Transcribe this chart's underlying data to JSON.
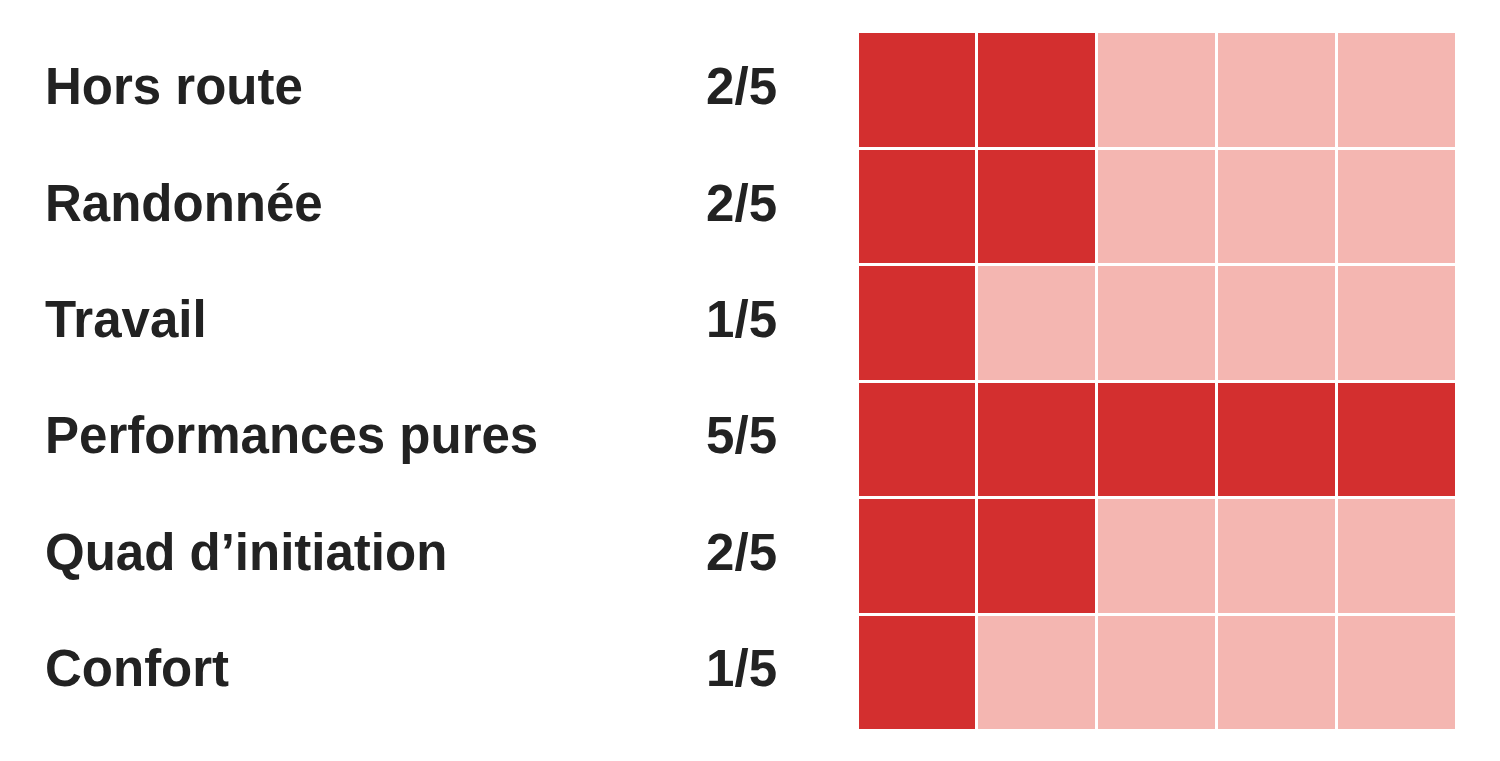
{
  "chart_data": {
    "type": "bar",
    "orientation": "horizontal",
    "categories": [
      "Hors route",
      "Randonnée",
      "Travail",
      "Performances pures",
      "Quad d’initiation",
      "Confort"
    ],
    "values": [
      0.4,
      0.4,
      0.2,
      1,
      0.4,
      0.2
    ],
    "value_labels": [
      "2/5",
      "2/5",
      "1/5",
      "5/5",
      "2/5",
      "1/5"
    ],
    "color": "#d32f2f",
    "xlim": [
      0,
      1
    ],
    "xticks": [
      {
        "value": 0,
        "label": null
      },
      {
        "value": 0.2,
        "label": null
      },
      {
        "value": 0.4,
        "label": null
      },
      {
        "value": 0.6,
        "label": null
      },
      {
        "value": 0.8,
        "label": null
      },
      {
        "value": 1,
        "label": null
      }
    ],
    "grid": true,
    "tick_labels": "y",
    "bands": [
      {
        "axis": "x",
        "from": 0,
        "to": 1,
        "color": "#f4b6b1"
      }
    ]
  }
}
